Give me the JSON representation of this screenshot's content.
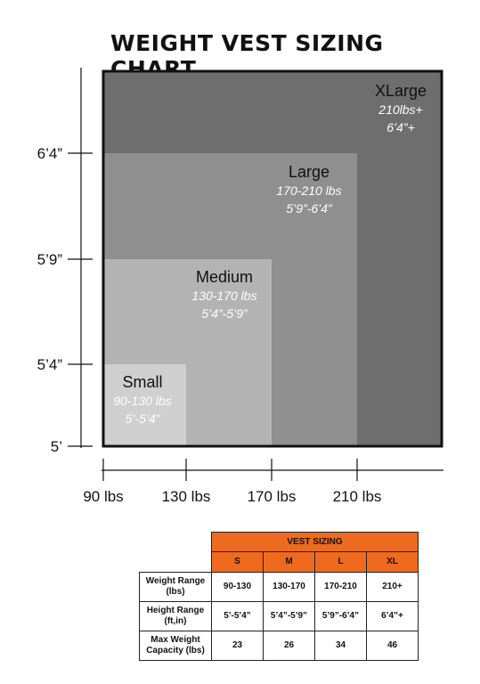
{
  "title": "WEIGHT VEST SIZING CHART",
  "chart_data": {
    "type": "nested-area",
    "x_ticks": [
      "90 lbs",
      "130 lbs",
      "170 lbs",
      "210 lbs"
    ],
    "y_ticks": [
      "5’",
      "5’4”",
      "5’9”",
      "6’4”"
    ],
    "sizes": [
      {
        "name": "Small",
        "weight": "90-130 lbs",
        "height": "5’-5’4”",
        "w_max": 130,
        "h_max": 64,
        "color": "#cfcfcf",
        "label_color": "#ffffff",
        "name_color": "#111111"
      },
      {
        "name": "Medium",
        "weight": "130-170 lbs",
        "height": "5’4”-5’9”",
        "w_max": 170,
        "h_max": 69,
        "color": "#b3b3b3",
        "label_color": "#ffffff",
        "name_color": "#111111"
      },
      {
        "name": "Large",
        "weight": "170-210 lbs",
        "height": "5’9”-6’4”",
        "w_max": 210,
        "h_max": 76,
        "color": "#8f8f8f",
        "label_color": "#ffffff",
        "name_color": "#111111"
      },
      {
        "name": "XLarge",
        "weight": "210lbs+",
        "height": "6’4”+",
        "w_max": 250,
        "h_max": 82,
        "color": "#6e6e6e",
        "label_color": "#ffffff",
        "name_color": "#111111"
      }
    ]
  },
  "table": {
    "header": "VEST SIZING",
    "columns": [
      "S",
      "M",
      "L",
      "XL"
    ],
    "rows": [
      {
        "label": "Weight Range (lbs)",
        "values": [
          "90-130",
          "130-170",
          "170-210",
          "210+"
        ]
      },
      {
        "label": "Height Range (ft,in)",
        "values": [
          "5’-5’4”",
          "5’4”-5’9”",
          "5’9”-6’4”",
          "6’4”+"
        ]
      },
      {
        "label": "Max Weight Capacity (lbs)",
        "values": [
          "23",
          "26",
          "34",
          "46"
        ]
      }
    ],
    "header_color": "#ee6a1e"
  }
}
